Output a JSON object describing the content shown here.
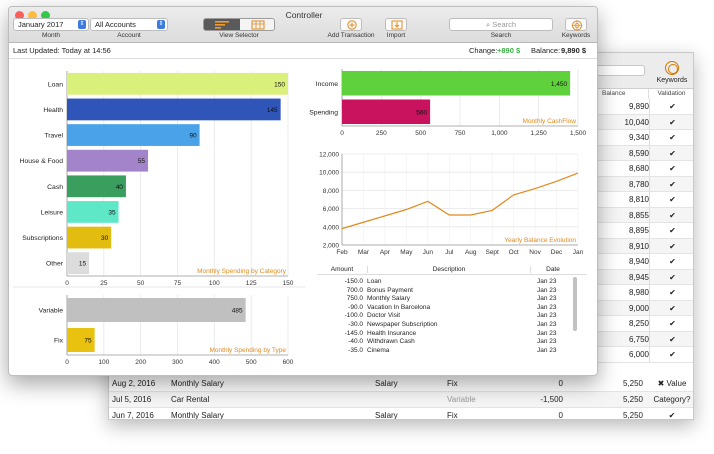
{
  "window_title": "Controller",
  "toolbar": {
    "month_value": "January 2017",
    "month_label": "Month",
    "account_value": "All Accounts",
    "account_label": "Account",
    "view_selector_label": "View Selector",
    "add_transaction_label": "Add Transaction",
    "import_label": "Import",
    "search_placeholder": "Search",
    "search_label": "Search",
    "keywords_label": "Keywords"
  },
  "status": {
    "last_updated": "Last Updated: Today at 14:56",
    "change_label": "Change:",
    "change_value": "+890 $",
    "balance_label": "Balance:",
    "balance_value": "9,890 $"
  },
  "colors": {
    "accent": "#e08a1e",
    "positive": "#3cb043",
    "traffic_close": "#fc605c",
    "traffic_min": "#fdbc40",
    "traffic_max": "#34c84a"
  },
  "chart_data": [
    {
      "type": "bar",
      "orientation": "horizontal",
      "title": "Monthly Spending by Category",
      "categories": [
        "Loan",
        "Health",
        "Travel",
        "House & Food",
        "Cash",
        "Leisure",
        "Subscriptions",
        "Other"
      ],
      "values": [
        150,
        145,
        90,
        55,
        40,
        35,
        30,
        15
      ],
      "colors": [
        "#d9f07a",
        "#2f55b8",
        "#4aa3e8",
        "#a383c9",
        "#3a9e5f",
        "#5fe8c8",
        "#e2bd10",
        "#dcdcdc"
      ],
      "xlim": [
        0,
        150
      ],
      "xticks": [
        "0",
        "25",
        "50",
        "75",
        "100",
        "125",
        "150"
      ],
      "grid": true
    },
    {
      "type": "bar",
      "orientation": "horizontal",
      "title": "Monthly Spending by Type",
      "categories": [
        "Variable",
        "Fix"
      ],
      "values": [
        485,
        75
      ],
      "colors": [
        "#c0c0c0",
        "#e8c20f"
      ],
      "xlim": [
        0,
        600
      ],
      "xticks": [
        "0",
        "100",
        "200",
        "300",
        "400",
        "500",
        "600"
      ],
      "grid": true
    },
    {
      "type": "bar",
      "orientation": "horizontal",
      "title": "Monthly CashFlow",
      "categories": [
        "Income",
        "Spending"
      ],
      "values": [
        1450,
        560
      ],
      "value_labels": [
        "1,450",
        "560"
      ],
      "colors": [
        "#5fd13c",
        "#c9135e"
      ],
      "xlim": [
        0,
        1500
      ],
      "xticks": [
        "0",
        "250",
        "500",
        "750",
        "1,000",
        "1,250",
        "1,500"
      ],
      "grid": true
    },
    {
      "type": "line",
      "title": "Yearly Balance Evolution",
      "x": [
        "Feb",
        "Mar",
        "Apr",
        "May",
        "Jun",
        "Jul",
        "Aug",
        "Sept",
        "Oct",
        "Nov",
        "Dec",
        "Jan"
      ],
      "y": [
        3800,
        4500,
        5200,
        5900,
        6800,
        5300,
        5300,
        5800,
        7500,
        8200,
        9000,
        9900
      ],
      "ylim": [
        2000,
        12000
      ],
      "yticks": [
        "2,000",
        "4,000",
        "6,000",
        "8,000",
        "10,000",
        "12,000"
      ],
      "color": "#e08a1e",
      "grid": true
    }
  ],
  "transactions": {
    "headers": [
      "Amount",
      "Description",
      "Date"
    ],
    "rows": [
      {
        "amount": "-150.0",
        "description": "Loan",
        "date": "Jan 23"
      },
      {
        "amount": "700.0",
        "description": "Bonus Payment",
        "date": "Jan 23"
      },
      {
        "amount": "750.0",
        "description": "Monthly Salary",
        "date": "Jan 23"
      },
      {
        "amount": "-90.0",
        "description": "Vacation In Barcelona",
        "date": "Jan 23"
      },
      {
        "amount": "-100.0",
        "description": "Doctor Visit",
        "date": "Jan 23"
      },
      {
        "amount": "-30.0",
        "description": "Newspaper Subscription",
        "date": "Jan 23"
      },
      {
        "amount": "-145.0",
        "description": "Health Insurance",
        "date": "Jan 23"
      },
      {
        "amount": "-40.0",
        "description": "Withdrawn Cash",
        "date": "Jan 23"
      },
      {
        "amount": "-35.0",
        "description": "Cinema",
        "date": "Jan 23"
      }
    ]
  },
  "back_window": {
    "header_balance": "Balance",
    "header_validation": "Validation",
    "header_keywords": "Keywords",
    "balances": [
      "9,890",
      "10,040",
      "9,340",
      "8,590",
      "8,680",
      "8,780",
      "8,810",
      "8,855",
      "8,895",
      "8,910",
      "8,940",
      "8,945",
      "8,980",
      "9,000",
      "8,250",
      "6,750",
      "6,000"
    ],
    "validations": [
      "✔",
      "✔",
      "✔",
      "✔",
      "✔",
      "✔",
      "✔",
      "✔",
      "✔",
      "✔",
      "✔",
      "✔",
      "✔",
      "✔",
      "✔",
      "✔",
      "✔"
    ],
    "bottom_rows": [
      {
        "date": "Aug 2, 2016",
        "description": "Monthly Salary",
        "category": "Salary",
        "type": "Fix",
        "amount": "0",
        "balance": "5,250",
        "validation": "✖ Value"
      },
      {
        "date": "Jul 5, 2016",
        "description": "Car Rental",
        "category": "",
        "type": "Variable",
        "amount": "-1,500",
        "balance": "5,250",
        "validation": "Category?"
      },
      {
        "date": "Jun 7, 2016",
        "description": "Monthly Salary",
        "category": "Salary",
        "type": "Fix",
        "amount": "0",
        "balance": "5,250",
        "validation": "✔"
      }
    ]
  }
}
